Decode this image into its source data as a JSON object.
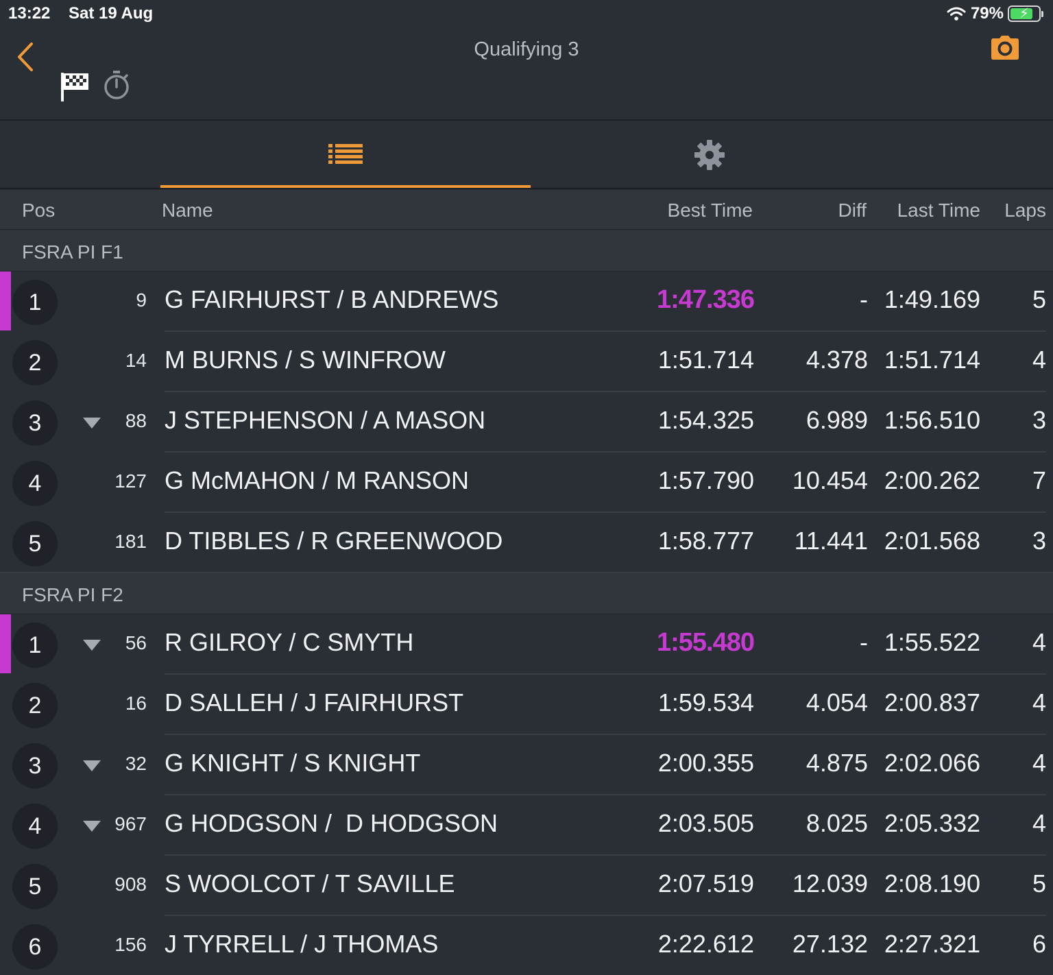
{
  "status_bar": {
    "time": "13:22",
    "date": "Sat 19 Aug",
    "battery": "79%"
  },
  "header": {
    "title": "Qualifying 3"
  },
  "colors": {
    "accent": "#f09a3a",
    "fastest": "#c63ad1",
    "background": "#2a2e35"
  },
  "tabs": [
    {
      "icon": "list-icon",
      "active": true
    },
    {
      "icon": "gear-icon",
      "active": false
    }
  ],
  "columns": {
    "pos": "Pos",
    "name": "Name",
    "best": "Best Time",
    "diff": "Diff",
    "last": "Last Time",
    "laps": "Laps"
  },
  "groups": [
    {
      "name": "FSRA PI F1",
      "rows": [
        {
          "pos": "1",
          "trend": "",
          "car": "9",
          "name": "G FAIRHURST / B ANDREWS",
          "best": "1:47.336",
          "fastest": true,
          "diff": "-",
          "last": "1:49.169",
          "laps": "5"
        },
        {
          "pos": "2",
          "trend": "",
          "car": "14",
          "name": "M BURNS / S WINFROW",
          "best": "1:51.714",
          "fastest": false,
          "diff": "4.378",
          "last": "1:51.714",
          "laps": "4"
        },
        {
          "pos": "3",
          "trend": "down",
          "car": "88",
          "name": "J STEPHENSON / A MASON",
          "best": "1:54.325",
          "fastest": false,
          "diff": "6.989",
          "last": "1:56.510",
          "laps": "3"
        },
        {
          "pos": "4",
          "trend": "",
          "car": "127",
          "name": "G McMAHON / M RANSON",
          "best": "1:57.790",
          "fastest": false,
          "diff": "10.454",
          "last": "2:00.262",
          "laps": "7"
        },
        {
          "pos": "5",
          "trend": "",
          "car": "181",
          "name": "D TIBBLES / R GREENWOOD",
          "best": "1:58.777",
          "fastest": false,
          "diff": "11.441",
          "last": "2:01.568",
          "laps": "3"
        }
      ]
    },
    {
      "name": "FSRA PI F2",
      "rows": [
        {
          "pos": "1",
          "trend": "down",
          "car": "56",
          "name": "R GILROY / C SMYTH",
          "best": "1:55.480",
          "fastest": true,
          "diff": "-",
          "last": "1:55.522",
          "laps": "4"
        },
        {
          "pos": "2",
          "trend": "",
          "car": "16",
          "name": "D SALLEH / J FAIRHURST",
          "best": "1:59.534",
          "fastest": false,
          "diff": "4.054",
          "last": "2:00.837",
          "laps": "4"
        },
        {
          "pos": "3",
          "trend": "down",
          "car": "32",
          "name": "G KNIGHT / S KNIGHT",
          "best": "2:00.355",
          "fastest": false,
          "diff": "4.875",
          "last": "2:02.066",
          "laps": "4"
        },
        {
          "pos": "4",
          "trend": "down",
          "car": "967",
          "name": "G HODGSON /  D HODGSON",
          "best": "2:03.505",
          "fastest": false,
          "diff": "8.025",
          "last": "2:05.332",
          "laps": "4"
        },
        {
          "pos": "5",
          "trend": "",
          "car": "908",
          "name": "S WOOLCOT / T SAVILLE",
          "best": "2:07.519",
          "fastest": false,
          "diff": "12.039",
          "last": "2:08.190",
          "laps": "5"
        },
        {
          "pos": "6",
          "trend": "",
          "car": "156",
          "name": "J TYRRELL / J THOMAS",
          "best": "2:22.612",
          "fastest": false,
          "diff": "27.132",
          "last": "2:27.321",
          "laps": "6"
        }
      ]
    }
  ]
}
